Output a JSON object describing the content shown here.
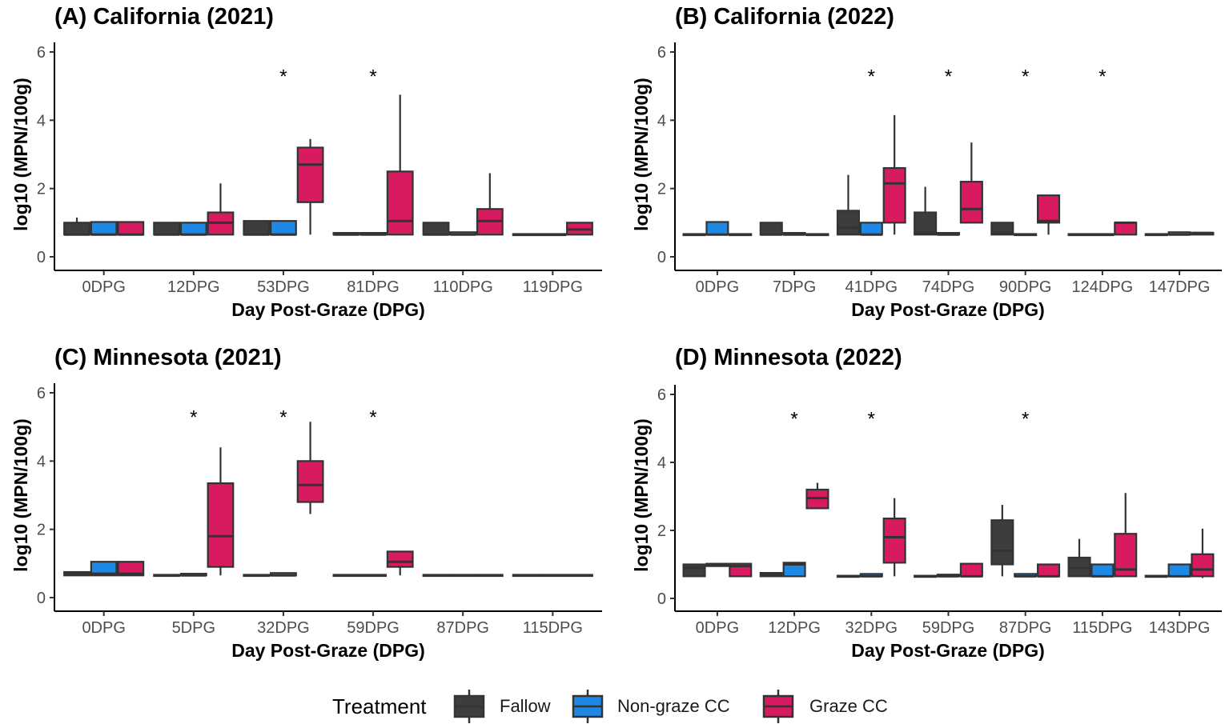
{
  "colors": {
    "Fallow": "#3d3d3d",
    "Non-graze CC": "#1e88e5",
    "Graze CC": "#d81b60",
    "box_line": "#333333"
  },
  "legend": {
    "title": "Treatment",
    "items": [
      "Fallow",
      "Non-graze CC",
      "Graze CC"
    ]
  },
  "chart_data": [
    {
      "type": "boxplot",
      "title": "(A) California (2021)",
      "xlabel": "Day Post-Graze (DPG)",
      "ylabel": "log10 (MPN/100g)",
      "ylim": [
        0,
        6
      ],
      "yticks": [
        0,
        2,
        4,
        6
      ],
      "categories": [
        "0DPG",
        "12DPG",
        "53DPG",
        "81DPG",
        "110DPG",
        "119DPG"
      ],
      "significant": [
        "53DPG",
        "81DPG"
      ],
      "series": [
        {
          "name": "Fallow",
          "boxes": [
            {
              "min": 0.65,
              "q1": 0.65,
              "median": 0.65,
              "q3": 1.0,
              "max": 1.15
            },
            {
              "min": 0.65,
              "q1": 0.65,
              "median": 0.65,
              "q3": 1.0,
              "max": 1.0
            },
            {
              "min": 0.65,
              "q1": 0.65,
              "median": 0.65,
              "q3": 1.05,
              "max": 1.05
            },
            {
              "min": 0.65,
              "q1": 0.65,
              "median": 0.65,
              "q3": 0.7,
              "max": 0.7
            },
            {
              "min": 0.65,
              "q1": 0.65,
              "median": 0.65,
              "q3": 1.0,
              "max": 1.0
            },
            {
              "min": 0.65,
              "q1": 0.65,
              "median": 0.65,
              "q3": 0.65,
              "max": 0.65
            }
          ]
        },
        {
          "name": "Non-graze CC",
          "boxes": [
            {
              "min": 0.65,
              "q1": 0.65,
              "median": 0.65,
              "q3": 1.02,
              "max": 1.02
            },
            {
              "min": 0.65,
              "q1": 0.65,
              "median": 0.65,
              "q3": 1.0,
              "max": 1.0
            },
            {
              "min": 0.65,
              "q1": 0.65,
              "median": 0.65,
              "q3": 1.05,
              "max": 1.05
            },
            {
              "min": 0.65,
              "q1": 0.65,
              "median": 0.65,
              "q3": 0.7,
              "max": 0.7
            },
            {
              "min": 0.65,
              "q1": 0.65,
              "median": 0.65,
              "q3": 0.72,
              "max": 0.72
            },
            {
              "min": 0.65,
              "q1": 0.65,
              "median": 0.65,
              "q3": 0.65,
              "max": 0.65
            }
          ]
        },
        {
          "name": "Graze CC",
          "boxes": [
            {
              "min": 0.65,
              "q1": 0.65,
              "median": 0.65,
              "q3": 1.02,
              "max": 1.02
            },
            {
              "min": 0.65,
              "q1": 0.65,
              "median": 1.0,
              "q3": 1.3,
              "max": 2.15
            },
            {
              "min": 0.65,
              "q1": 1.6,
              "median": 2.7,
              "q3": 3.2,
              "max": 3.45
            },
            {
              "min": 0.65,
              "q1": 0.65,
              "median": 1.05,
              "q3": 2.5,
              "max": 4.75
            },
            {
              "min": 0.65,
              "q1": 0.65,
              "median": 1.05,
              "q3": 1.4,
              "max": 2.45
            },
            {
              "min": 0.65,
              "q1": 0.65,
              "median": 0.8,
              "q3": 1.0,
              "max": 1.0
            }
          ]
        }
      ]
    },
    {
      "type": "boxplot",
      "title": "(B) California (2022)",
      "xlabel": "Day Post-Graze (DPG)",
      "ylabel": "log10 (MPN/100g)",
      "ylim": [
        0,
        6
      ],
      "yticks": [
        0,
        2,
        4,
        6
      ],
      "categories": [
        "0DPG",
        "7DPG",
        "41DPG",
        "74DPG",
        "90DPG",
        "124DPG",
        "147DPG"
      ],
      "significant": [
        "41DPG",
        "74DPG",
        "90DPG",
        "124DPG"
      ],
      "series": [
        {
          "name": "Fallow",
          "boxes": [
            {
              "min": 0.65,
              "q1": 0.65,
              "median": 0.65,
              "q3": 0.65,
              "max": 0.65
            },
            {
              "min": 0.65,
              "q1": 0.65,
              "median": 0.65,
              "q3": 1.0,
              "max": 1.0
            },
            {
              "min": 0.65,
              "q1": 0.65,
              "median": 0.85,
              "q3": 1.35,
              "max": 2.4
            },
            {
              "min": 0.65,
              "q1": 0.65,
              "median": 0.7,
              "q3": 1.3,
              "max": 2.05
            },
            {
              "min": 0.65,
              "q1": 0.65,
              "median": 0.7,
              "q3": 1.0,
              "max": 1.0
            },
            {
              "min": 0.65,
              "q1": 0.65,
              "median": 0.65,
              "q3": 0.65,
              "max": 0.65
            },
            {
              "min": 0.65,
              "q1": 0.65,
              "median": 0.65,
              "q3": 0.65,
              "max": 0.65
            }
          ]
        },
        {
          "name": "Non-graze CC",
          "boxes": [
            {
              "min": 0.65,
              "q1": 0.65,
              "median": 0.65,
              "q3": 1.02,
              "max": 1.02
            },
            {
              "min": 0.65,
              "q1": 0.65,
              "median": 0.65,
              "q3": 0.7,
              "max": 0.7
            },
            {
              "min": 0.65,
              "q1": 0.65,
              "median": 0.65,
              "q3": 1.0,
              "max": 1.0
            },
            {
              "min": 0.65,
              "q1": 0.65,
              "median": 0.65,
              "q3": 0.7,
              "max": 0.7
            },
            {
              "min": 0.65,
              "q1": 0.65,
              "median": 0.65,
              "q3": 0.65,
              "max": 0.65
            },
            {
              "min": 0.65,
              "q1": 0.65,
              "median": 0.65,
              "q3": 0.65,
              "max": 0.65
            },
            {
              "min": 0.65,
              "q1": 0.65,
              "median": 0.65,
              "q3": 0.72,
              "max": 0.72
            }
          ]
        },
        {
          "name": "Graze CC",
          "boxes": [
            {
              "min": 0.65,
              "q1": 0.65,
              "median": 0.65,
              "q3": 0.65,
              "max": 0.65
            },
            {
              "min": 0.65,
              "q1": 0.65,
              "median": 0.65,
              "q3": 0.65,
              "max": 0.65
            },
            {
              "min": 0.65,
              "q1": 1.0,
              "median": 2.15,
              "q3": 2.6,
              "max": 4.15
            },
            {
              "min": 1.0,
              "q1": 1.0,
              "median": 1.4,
              "q3": 2.2,
              "max": 3.35
            },
            {
              "min": 0.65,
              "q1": 1.0,
              "median": 1.05,
              "q3": 1.8,
              "max": 1.8
            },
            {
              "min": 0.65,
              "q1": 0.65,
              "median": 1.0,
              "q3": 1.0,
              "max": 1.0
            },
            {
              "min": 0.65,
              "q1": 0.65,
              "median": 0.7,
              "q3": 0.7,
              "max": 0.7
            }
          ]
        }
      ]
    },
    {
      "type": "boxplot",
      "title": "(C) Minnesota (2021)",
      "xlabel": "Day Post-Graze (DPG)",
      "ylabel": "log10 (MPN/100g)",
      "ylim": [
        0,
        6
      ],
      "yticks": [
        0,
        2,
        4,
        6
      ],
      "categories": [
        "0DPG",
        "5DPG",
        "32DPG",
        "59DPG",
        "87DPG",
        "115DPG"
      ],
      "significant": [
        "5DPG",
        "32DPG",
        "59DPG"
      ],
      "series": [
        {
          "name": "Fallow",
          "boxes": [
            {
              "min": 0.65,
              "q1": 0.65,
              "median": 0.7,
              "q3": 0.75,
              "max": 0.75
            },
            {
              "min": 0.65,
              "q1": 0.65,
              "median": 0.65,
              "q3": 0.65,
              "max": 0.65
            },
            {
              "min": 0.65,
              "q1": 0.65,
              "median": 0.65,
              "q3": 0.65,
              "max": 0.65
            },
            {
              "min": 0.65,
              "q1": 0.65,
              "median": 0.65,
              "q3": 0.65,
              "max": 0.65
            },
            {
              "min": 0.65,
              "q1": 0.65,
              "median": 0.65,
              "q3": 0.65,
              "max": 0.65
            },
            {
              "min": 0.65,
              "q1": 0.65,
              "median": 0.65,
              "q3": 0.65,
              "max": 0.65
            }
          ]
        },
        {
          "name": "Non-graze CC",
          "boxes": [
            {
              "min": 0.65,
              "q1": 0.65,
              "median": 0.7,
              "q3": 1.05,
              "max": 1.05
            },
            {
              "min": 0.65,
              "q1": 0.65,
              "median": 0.65,
              "q3": 0.7,
              "max": 0.7
            },
            {
              "min": 0.65,
              "q1": 0.65,
              "median": 0.65,
              "q3": 0.72,
              "max": 0.72
            },
            {
              "min": 0.65,
              "q1": 0.65,
              "median": 0.65,
              "q3": 0.65,
              "max": 0.65
            },
            {
              "min": 0.65,
              "q1": 0.65,
              "median": 0.65,
              "q3": 0.65,
              "max": 0.65
            },
            {
              "min": 0.65,
              "q1": 0.65,
              "median": 0.65,
              "q3": 0.65,
              "max": 0.65
            }
          ]
        },
        {
          "name": "Graze CC",
          "boxes": [
            {
              "min": 0.65,
              "q1": 0.65,
              "median": 0.7,
              "q3": 1.05,
              "max": 1.05
            },
            {
              "min": 0.65,
              "q1": 0.9,
              "median": 1.8,
              "q3": 3.35,
              "max": 4.4
            },
            {
              "min": 2.45,
              "q1": 2.8,
              "median": 3.3,
              "q3": 4.0,
              "max": 5.15
            },
            {
              "min": 0.65,
              "q1": 0.9,
              "median": 1.05,
              "q3": 1.35,
              "max": 1.35
            },
            {
              "min": 0.65,
              "q1": 0.65,
              "median": 0.65,
              "q3": 0.65,
              "max": 0.65
            },
            {
              "min": 0.65,
              "q1": 0.65,
              "median": 0.65,
              "q3": 0.65,
              "max": 0.65
            }
          ]
        }
      ]
    },
    {
      "type": "boxplot",
      "title": "(D) Minnesota (2022)",
      "xlabel": "Day Post-Graze (DPG)",
      "ylabel": "log10 (MPN/100g)",
      "ylim": [
        0,
        6
      ],
      "yticks": [
        0,
        2,
        4,
        6
      ],
      "categories": [
        "0DPG",
        "12DPG",
        "32DPG",
        "59DPG",
        "87DPG",
        "115DPG",
        "143DPG"
      ],
      "significant": [
        "12DPG",
        "32DPG",
        "87DPG"
      ],
      "series": [
        {
          "name": "Fallow",
          "boxes": [
            {
              "min": 0.65,
              "q1": 0.65,
              "median": 0.9,
              "q3": 1.0,
              "max": 1.0
            },
            {
              "min": 0.65,
              "q1": 0.65,
              "median": 0.7,
              "q3": 0.75,
              "max": 0.75
            },
            {
              "min": 0.65,
              "q1": 0.65,
              "median": 0.65,
              "q3": 0.65,
              "max": 0.65
            },
            {
              "min": 0.65,
              "q1": 0.65,
              "median": 0.65,
              "q3": 0.65,
              "max": 0.65
            },
            {
              "min": 0.65,
              "q1": 1.0,
              "median": 1.4,
              "q3": 2.3,
              "max": 2.75
            },
            {
              "min": 0.65,
              "q1": 0.65,
              "median": 0.9,
              "q3": 1.2,
              "max": 1.75
            },
            {
              "min": 0.65,
              "q1": 0.65,
              "median": 0.65,
              "q3": 0.65,
              "max": 0.65
            }
          ]
        },
        {
          "name": "Non-graze CC",
          "boxes": [
            {
              "min": 0.95,
              "q1": 0.95,
              "median": 1.0,
              "q3": 1.02,
              "max": 1.02
            },
            {
              "min": 0.65,
              "q1": 0.65,
              "median": 1.0,
              "q3": 1.05,
              "max": 1.05
            },
            {
              "min": 0.65,
              "q1": 0.65,
              "median": 0.65,
              "q3": 0.72,
              "max": 0.72
            },
            {
              "min": 0.65,
              "q1": 0.65,
              "median": 0.65,
              "q3": 0.7,
              "max": 0.7
            },
            {
              "min": 0.65,
              "q1": 0.65,
              "median": 0.65,
              "q3": 0.72,
              "max": 0.72
            },
            {
              "min": 0.65,
              "q1": 0.65,
              "median": 0.65,
              "q3": 1.0,
              "max": 1.0
            },
            {
              "min": 0.65,
              "q1": 0.65,
              "median": 0.65,
              "q3": 1.0,
              "max": 1.0
            }
          ]
        },
        {
          "name": "Graze CC",
          "boxes": [
            {
              "min": 0.65,
              "q1": 0.65,
              "median": 0.95,
              "q3": 1.02,
              "max": 1.02
            },
            {
              "min": 2.65,
              "q1": 2.65,
              "median": 2.95,
              "q3": 3.2,
              "max": 3.4
            },
            {
              "min": 0.65,
              "q1": 1.05,
              "median": 1.8,
              "q3": 2.35,
              "max": 2.95
            },
            {
              "min": 0.65,
              "q1": 0.65,
              "median": 0.65,
              "q3": 1.02,
              "max": 1.02
            },
            {
              "min": 0.65,
              "q1": 0.65,
              "median": 0.65,
              "q3": 1.0,
              "max": 1.0
            },
            {
              "min": 0.65,
              "q1": 0.65,
              "median": 0.85,
              "q3": 1.9,
              "max": 3.1
            },
            {
              "min": 0.6,
              "q1": 0.65,
              "median": 0.85,
              "q3": 1.3,
              "max": 2.05
            }
          ]
        }
      ]
    }
  ]
}
